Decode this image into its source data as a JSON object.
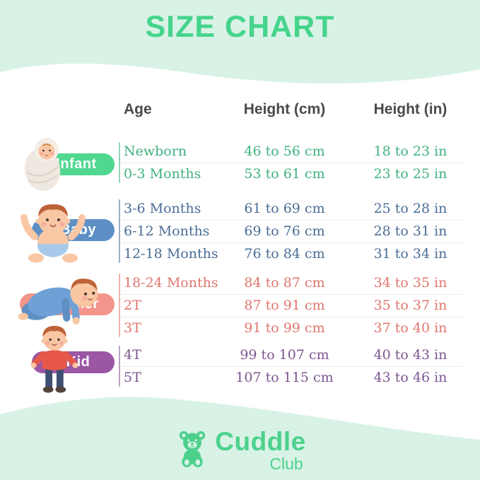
{
  "title": "SIZE CHART",
  "columns": {
    "age": "Age",
    "height_cm": "Height (cm)",
    "height_in": "Height (in)"
  },
  "groups": [
    {
      "name": "Infant",
      "pill_color": "#50d890",
      "text_color": "#3fb27e",
      "illustration": "swaddled-infant-illustration",
      "rows": [
        {
          "age": "Newborn",
          "cm": "46 to 56 cm",
          "in": "18 to 23 in"
        },
        {
          "age": "0-3 Months",
          "cm": "53 to 61 cm",
          "in": "23 to 25 in"
        }
      ]
    },
    {
      "name": "Baby",
      "pill_color": "#5e90c6",
      "text_color": "#4a6d96",
      "illustration": "sitting-baby-illustration",
      "rows": [
        {
          "age": "3-6 Months",
          "cm": "61 to 69 cm",
          "in": "25 to 28 in"
        },
        {
          "age": "6-12 Months",
          "cm": "69 to 76 cm",
          "in": "28 to 31 in"
        },
        {
          "age": "12-18 Months",
          "cm": "76 to 84 cm",
          "in": "31 to 34 in"
        }
      ]
    },
    {
      "name": "Toddler",
      "pill_color": "#f4958b",
      "text_color": "#e0766d",
      "illustration": "crawling-toddler-illustration",
      "rows": [
        {
          "age": "18-24 Months",
          "cm": "84 to 87 cm",
          "in": "34 to 35 in"
        },
        {
          "age": "2T",
          "cm": "87 to 91 cm",
          "in": "35 to 37 in"
        },
        {
          "age": "3T",
          "cm": "91 to 99 cm",
          "in": "37 to 40 in"
        }
      ]
    },
    {
      "name": "Kid",
      "pill_color": "#9b57a4",
      "text_color": "#7d5590",
      "illustration": "standing-kid-illustration",
      "rows": [
        {
          "age": "4T",
          "cm": "99 to 107 cm",
          "in": "40 to 43 in"
        },
        {
          "age": "5T",
          "cm": "107 to 115 cm",
          "in": "43 to 46 in"
        }
      ]
    }
  ],
  "logo": {
    "brand": "Cuddle",
    "sub": "Club",
    "icon": "teddy-bear-icon",
    "color": "#4cd18c"
  },
  "colors": {
    "background_mint": "#d8f2e6",
    "card_white": "#ffffff",
    "title_green": "#45d48c",
    "header_text": "#4a4a4a",
    "row_separator": "#e9e9e9"
  }
}
